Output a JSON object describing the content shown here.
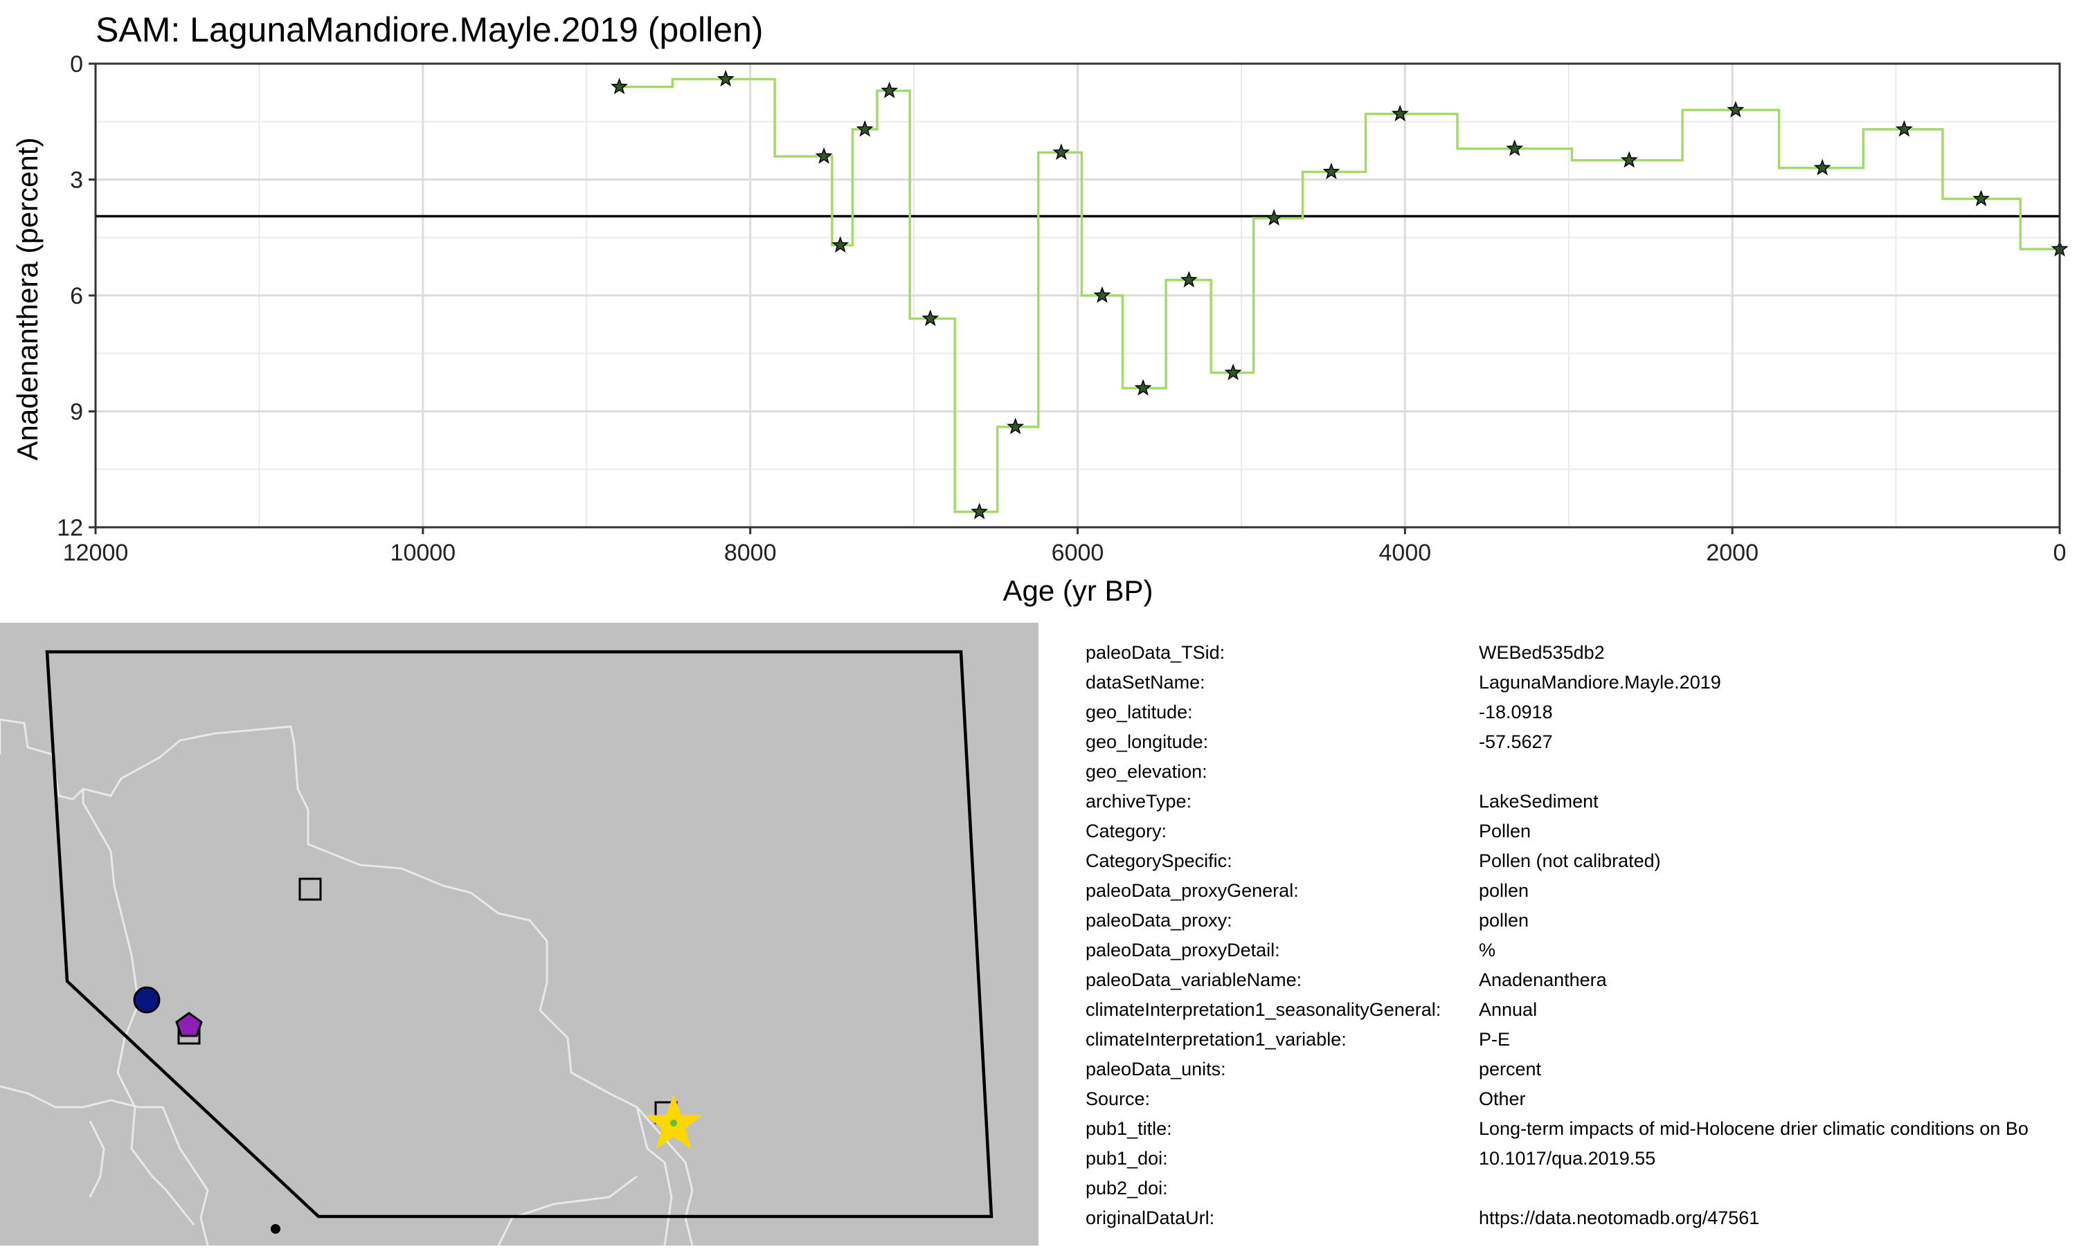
{
  "chart_data": {
    "type": "line",
    "step": true,
    "title": "SAM: LagunaMandiore.Mayle.2019 (pollen)",
    "xlabel": "Age (yr BP)",
    "ylabel": "Anadenanthera (percent)",
    "x_reversed": true,
    "y_reversed": true,
    "xlim": [
      12000,
      0
    ],
    "ylim": [
      0,
      12
    ],
    "xticks": [
      12000,
      10000,
      8000,
      6000,
      4000,
      2000,
      0
    ],
    "yticks": [
      0,
      3,
      6,
      9,
      12
    ],
    "grid": true,
    "reference_line_y": 3.95,
    "line_color": "#a6d96a",
    "point_color": "#33552a",
    "series": [
      {
        "x": [
          8800,
          8150,
          7550,
          7450,
          7300,
          7150,
          6900,
          6600,
          6380,
          6100,
          5850,
          5600,
          5320,
          5050,
          4800,
          4450,
          4030,
          3330,
          2630,
          1980,
          1450,
          950,
          480,
          0
        ],
        "y": [
          0.6,
          0.4,
          2.4,
          4.7,
          1.7,
          0.7,
          6.6,
          11.6,
          9.4,
          2.3,
          6.0,
          8.4,
          5.6,
          8.0,
          4.0,
          2.8,
          1.3,
          2.2,
          2.5,
          1.2,
          2.7,
          1.7,
          3.5,
          4.8
        ]
      }
    ]
  },
  "map": {
    "land_color": "#c0c0c0",
    "border_color": "#e8e8e8",
    "region_outline_color": "#000000",
    "markers": [
      {
        "shape": "square",
        "fill": "#c0c0c0",
        "name": "square-site-marker"
      },
      {
        "shape": "circle",
        "fill": "#0a1480",
        "name": "circle-site-marker"
      },
      {
        "shape": "square",
        "fill": "#c0c0c0",
        "name": "square-site-marker"
      },
      {
        "shape": "pentagon",
        "fill": "#8e1fb5",
        "name": "pentagon-site-marker"
      },
      {
        "shape": "square",
        "fill": "#c0c0c0",
        "name": "square-site-marker"
      },
      {
        "shape": "star",
        "fill": "#ffd700",
        "name": "target-site-star-marker"
      },
      {
        "shape": "dot",
        "fill": "#000000",
        "name": "small-dot-marker"
      }
    ]
  },
  "metadata": [
    {
      "key": "paleoData_TSid:",
      "value": "WEBed535db2"
    },
    {
      "key": "dataSetName:",
      "value": "LagunaMandiore.Mayle.2019"
    },
    {
      "key": "geo_latitude:",
      "value": "-18.0918"
    },
    {
      "key": "geo_longitude:",
      "value": "-57.5627"
    },
    {
      "key": "geo_elevation:",
      "value": ""
    },
    {
      "key": "archiveType:",
      "value": "LakeSediment"
    },
    {
      "key": "Category:",
      "value": "Pollen"
    },
    {
      "key": "CategorySpecific:",
      "value": "Pollen (not calibrated)"
    },
    {
      "key": "paleoData_proxyGeneral:",
      "value": "pollen"
    },
    {
      "key": "paleoData_proxy:",
      "value": "pollen"
    },
    {
      "key": "paleoData_proxyDetail:",
      "value": "%"
    },
    {
      "key": "paleoData_variableName:",
      "value": "Anadenanthera"
    },
    {
      "key": "climateInterpretation1_seasonalityGeneral:",
      "value": "Annual"
    },
    {
      "key": "climateInterpretation1_variable:",
      "value": "P-E"
    },
    {
      "key": "paleoData_units:",
      "value": "percent"
    },
    {
      "key": "Source:",
      "value": "Other"
    },
    {
      "key": "pub1_title:",
      "value": "Long-term impacts of mid-Holocene drier climatic conditions on Bo"
    },
    {
      "key": "pub1_doi:",
      "value": "10.1017/qua.2019.55"
    },
    {
      "key": "pub2_doi:",
      "value": ""
    },
    {
      "key": "originalDataUrl:",
      "value": "https://data.neotomadb.org/47561"
    }
  ]
}
